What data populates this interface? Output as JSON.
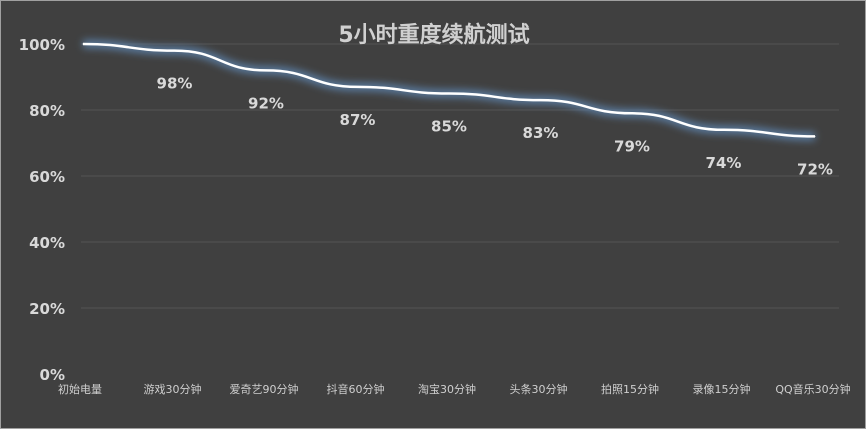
{
  "chart_data": {
    "type": "line",
    "title": "5小时重度续航测试",
    "xlabel": "",
    "ylabel": "",
    "categories": [
      "初始电量",
      "游戏30分钟",
      "爱奇艺90分钟",
      "抖音60分钟",
      "淘宝30分钟",
      "头条30分钟",
      "拍照15分钟",
      "录像15分钟",
      "QQ音乐30分钟"
    ],
    "values": [
      100,
      98,
      92,
      87,
      85,
      83,
      79,
      74,
      72
    ],
    "data_labels": [
      "",
      "98%",
      "92%",
      "87%",
      "85%",
      "83%",
      "79%",
      "74%",
      "72%"
    ],
    "ylim": [
      0,
      100
    ],
    "yticks": [
      "0%",
      "20%",
      "40%",
      "60%",
      "80%",
      "100%"
    ],
    "grid": true,
    "legend": "none",
    "colors": {
      "background": "#404040",
      "line": "#ffffff",
      "glow": "#5b7fa6",
      "grid": "#555555",
      "text": "#d9d9d9"
    }
  }
}
